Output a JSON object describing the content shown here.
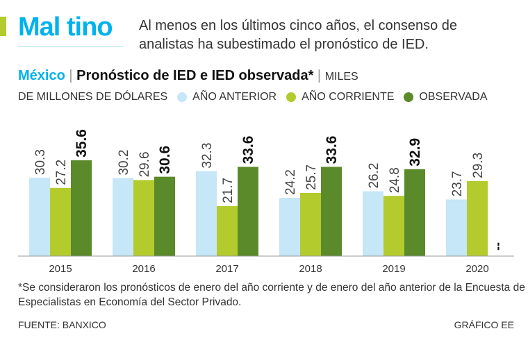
{
  "title": "Mal tino",
  "subtitle": "Al menos en los últimos cinco años, el consenso de analistas ha subestimado el pronóstico de IED.",
  "header": {
    "country": "México",
    "chart_title": "Pronóstico de IED e IED observada*",
    "units": "MILES DE MILLONES DE DÓLARES"
  },
  "chart_data": {
    "type": "bar",
    "title": "Pronóstico de IED e IED observada*",
    "ylabel": "MILES DE MILLONES DE DÓLARES",
    "categories": [
      "2015",
      "2016",
      "2017",
      "2018",
      "2019",
      "2020"
    ],
    "series": [
      {
        "name": "AÑO ANTERIOR",
        "color": "#c5e7f7",
        "values": [
          30.3,
          30.2,
          32.3,
          24.2,
          26.2,
          23.7
        ]
      },
      {
        "name": "AÑO CORRIENTE",
        "color": "#b3cb2d",
        "values": [
          27.2,
          29.6,
          21.7,
          25.7,
          24.8,
          29.3
        ]
      },
      {
        "name": "OBSERVADA",
        "color": "#5a8a2a",
        "values": [
          35.6,
          30.6,
          33.6,
          33.6,
          32.9,
          null
        ]
      }
    ],
    "missing_label": "--",
    "grid": false,
    "legend": "top"
  },
  "footnote": "*Se consideraron los pronósticos de enero del año corriente y de enero del año anterior de la Encuesta de Especialistas en Economía del Sector Privado.",
  "source": "FUENTE: BANXICO",
  "credit": "GRÁFICO EE"
}
